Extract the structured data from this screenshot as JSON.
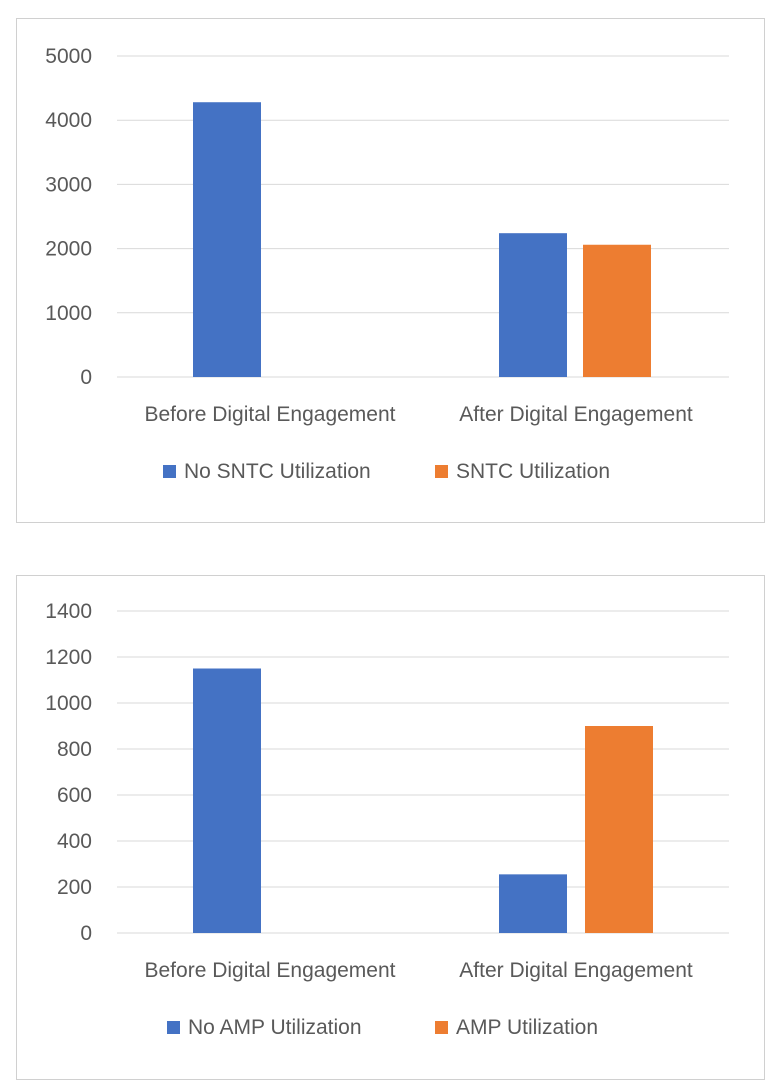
{
  "colors": {
    "series1": "#4472C4",
    "series2": "#ED7D31",
    "grid": "#D9D9D9",
    "text": "#595959"
  },
  "chart_data": [
    {
      "type": "bar",
      "categories": [
        "Before Digital Engagement",
        "After Digital Engagement"
      ],
      "series": [
        {
          "name": "No SNTC Utilization",
          "values": [
            4280,
            2240
          ]
        },
        {
          "name": "SNTC Utilization",
          "values": [
            0,
            2060
          ]
        }
      ],
      "ylim": [
        0,
        5000
      ],
      "yticks": [
        0,
        1000,
        2000,
        3000,
        4000,
        5000
      ],
      "grid": true,
      "legend": "bottom"
    },
    {
      "type": "bar",
      "categories": [
        "Before Digital Engagement",
        "After Digital Engagement"
      ],
      "series": [
        {
          "name": "No AMP Utilization",
          "values": [
            1150,
            255
          ]
        },
        {
          "name": "AMP Utilization",
          "values": [
            0,
            900
          ]
        }
      ],
      "ylim": [
        0,
        1400
      ],
      "yticks": [
        0,
        200,
        400,
        600,
        800,
        1000,
        1200,
        1400
      ],
      "grid": true,
      "legend": "bottom"
    }
  ]
}
